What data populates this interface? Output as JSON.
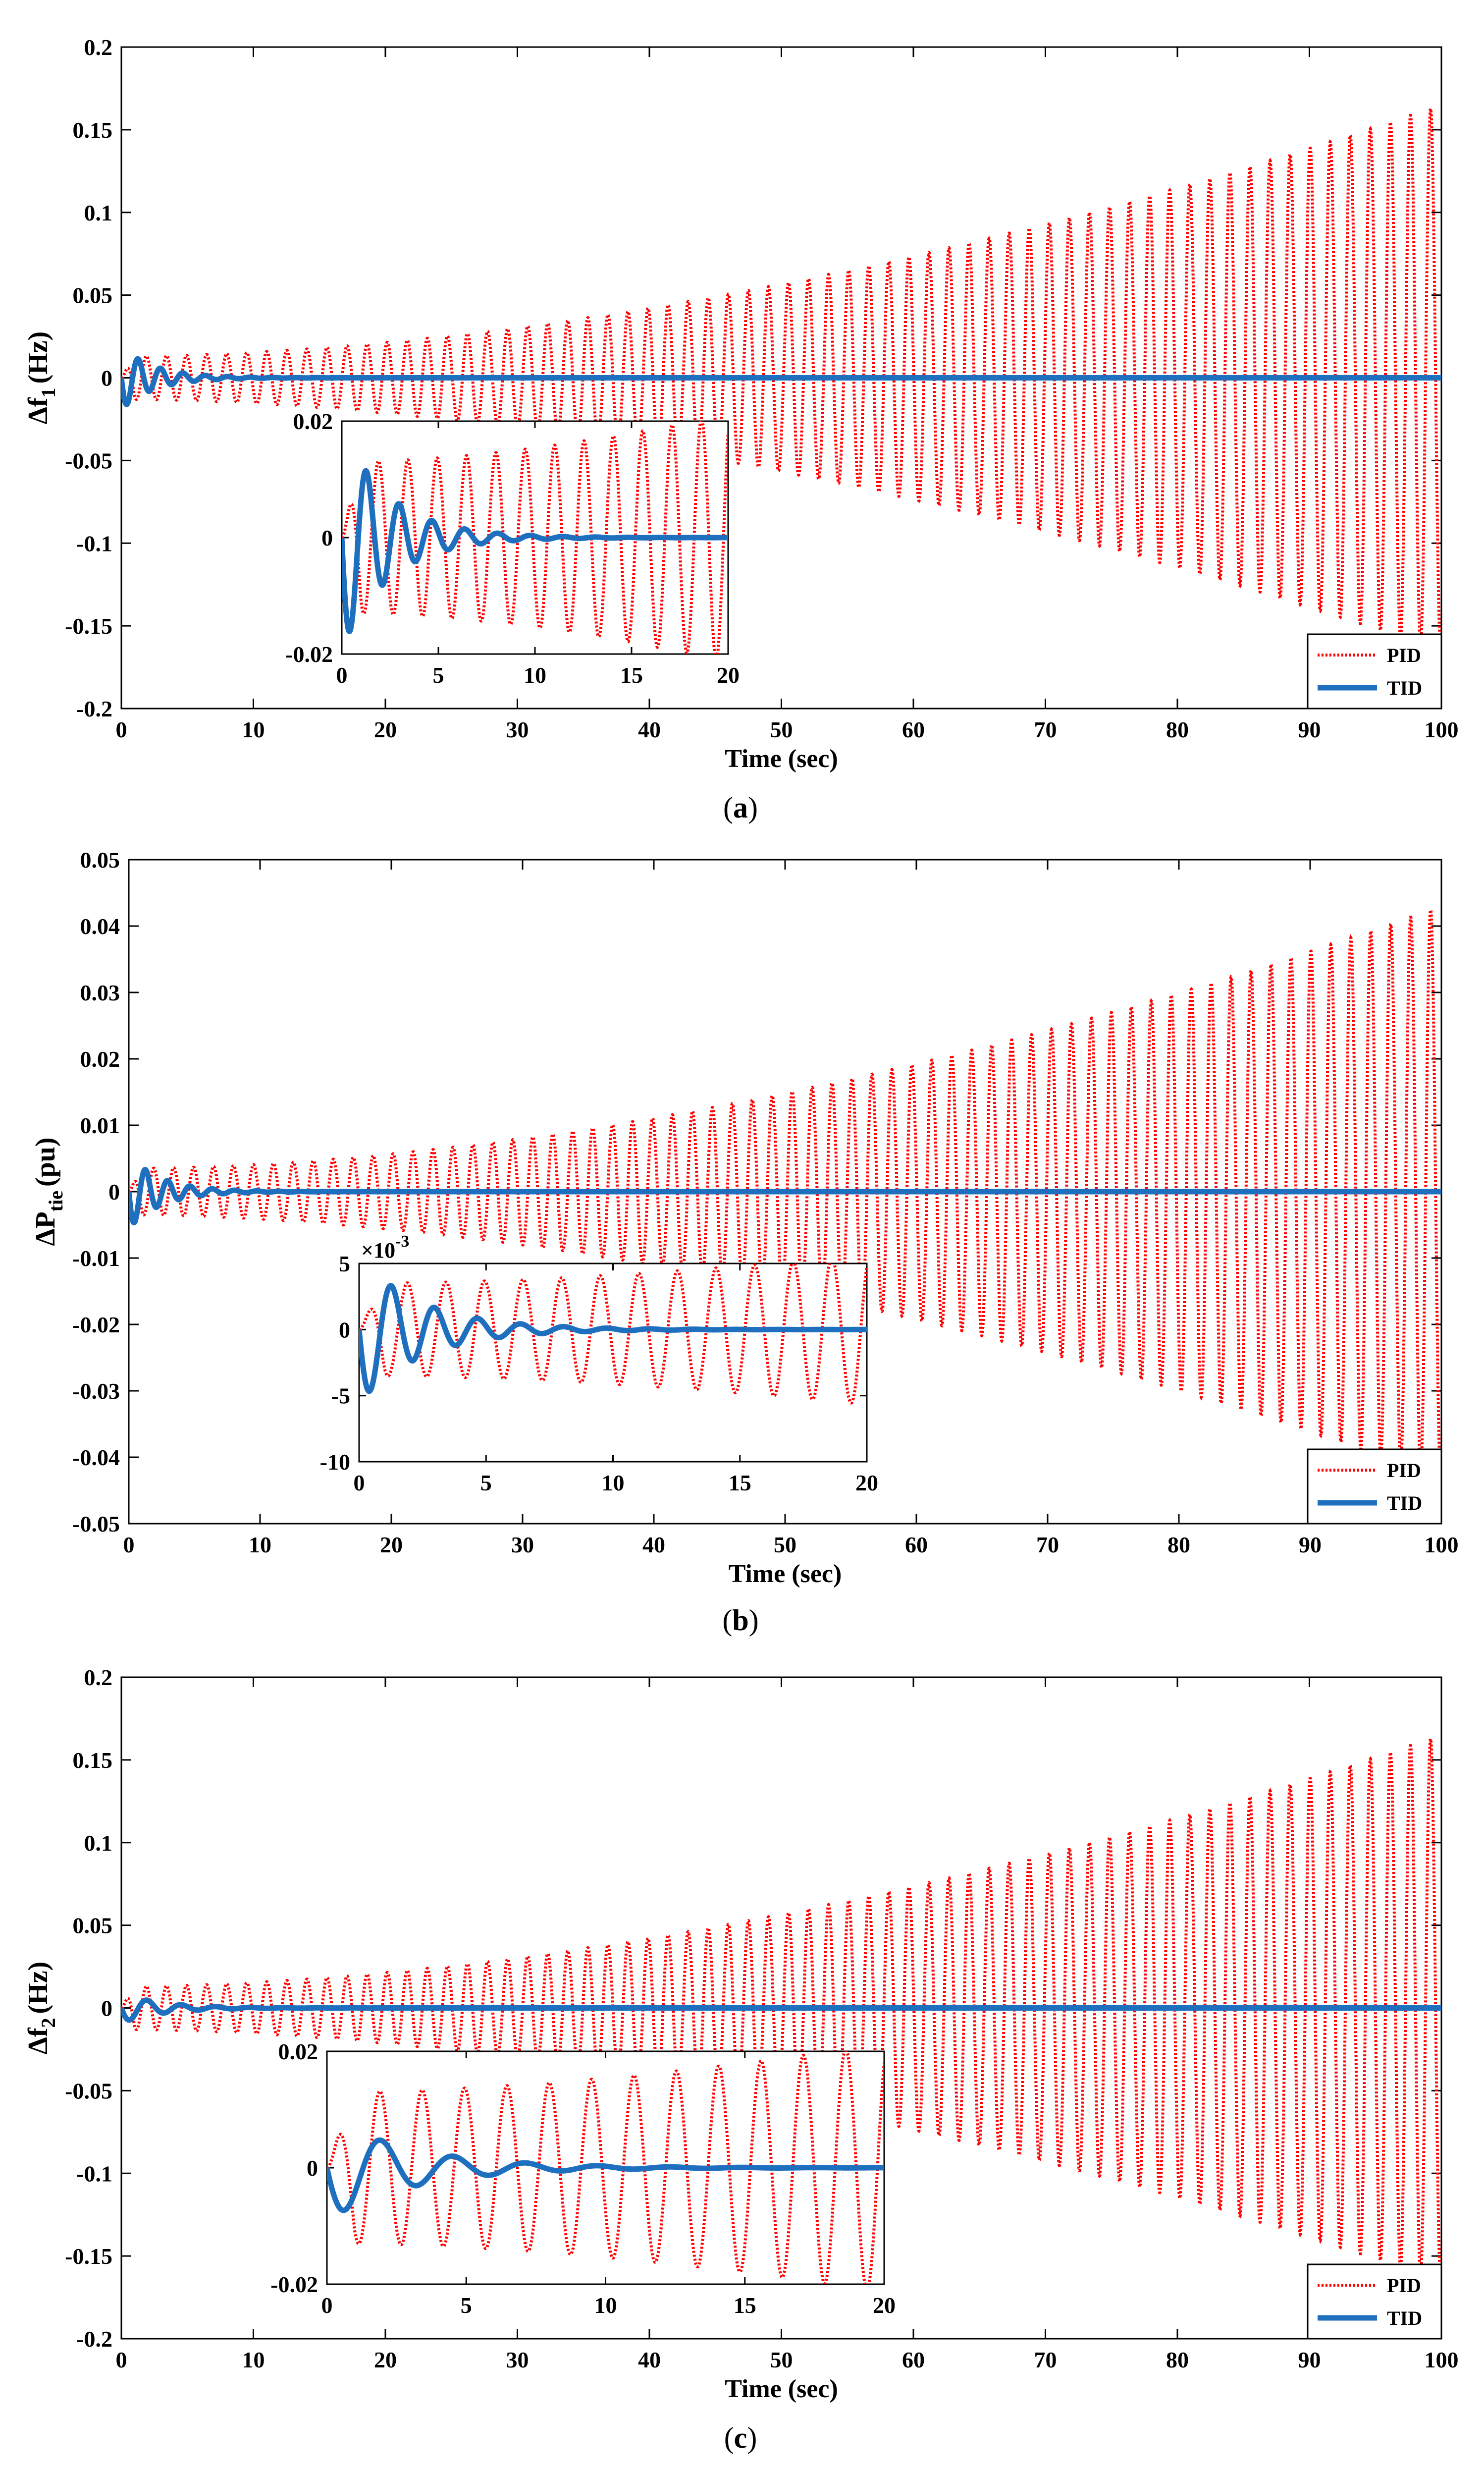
{
  "colors": {
    "pid": "#ff0000",
    "tid": "#1f6fbf",
    "axis": "#000000",
    "background": "#ffffff"
  },
  "chart_data": [
    {
      "type": "line",
      "panel_label": "(a)",
      "panel_letter": "a",
      "xlabel": "Time (sec)",
      "ylabel": {
        "main": "Δf",
        "sub": "1",
        "unit": "(Hz)"
      },
      "xlim": [
        0,
        100
      ],
      "ylim": [
        -0.2,
        0.2
      ],
      "x_ticks": [
        "0",
        "10",
        "20",
        "30",
        "40",
        "50",
        "60",
        "70",
        "80",
        "90",
        "100"
      ],
      "y_ticks": [
        "-0.2",
        "-0.15",
        "-0.1",
        "-0.05",
        "0",
        "0.05",
        "0.1",
        "0.15",
        "0.2"
      ],
      "legend": [
        "PID",
        "TID"
      ],
      "series": [
        {
          "name": "PID",
          "style": "dotted",
          "description": "growing oscillation",
          "amplitude_start": 0.013,
          "amplitude_end": 0.165,
          "period": 1.52
        },
        {
          "name": "TID",
          "style": "solid",
          "description": "damped oscillation settling to 0",
          "amplitude_start": 0.019,
          "period": 1.7,
          "settle_time": 10
        }
      ],
      "inset": {
        "xlim": [
          0,
          20
        ],
        "ylim": [
          -0.02,
          0.02
        ],
        "x_ticks": [
          "0",
          "5",
          "10",
          "15",
          "20"
        ],
        "y_ticks": [
          "-0.02",
          "0",
          "0.02"
        ],
        "exponent_label": ""
      }
    },
    {
      "type": "line",
      "panel_label": "(b)",
      "panel_letter": "b",
      "xlabel": "Time (sec)",
      "ylabel": {
        "main": "ΔP",
        "sub": "tie",
        "unit": "(pu)"
      },
      "xlim": [
        0,
        100
      ],
      "ylim": [
        -0.05,
        0.05
      ],
      "x_ticks": [
        "0",
        "10",
        "20",
        "30",
        "40",
        "50",
        "60",
        "70",
        "80",
        "90",
        "100"
      ],
      "y_ticks": [
        "-0.05",
        "-0.04",
        "-0.03",
        "-0.02",
        "-0.01",
        "0",
        "0.01",
        "0.02",
        "0.03",
        "0.04",
        "0.05"
      ],
      "legend": [
        "PID",
        "TID"
      ],
      "series": [
        {
          "name": "PID",
          "style": "dotted",
          "description": "growing oscillation",
          "amplitude_start": 0.0035,
          "amplitude_end": 0.043,
          "period": 1.52
        },
        {
          "name": "TID",
          "style": "solid",
          "description": "damped oscillation settling to 0",
          "amplitude_start": 0.0055,
          "period": 1.7,
          "settle_time": 10
        }
      ],
      "inset": {
        "xlim": [
          0,
          20
        ],
        "ylim": [
          -10,
          5
        ],
        "x_ticks": [
          "0",
          "5",
          "10",
          "15",
          "20"
        ],
        "y_ticks": [
          "-10",
          "-5",
          "0",
          "5"
        ],
        "exponent_label": "×10",
        "exponent_power": "-3"
      }
    },
    {
      "type": "line",
      "panel_label": "(c)",
      "panel_letter": "c",
      "xlabel": "Time (sec)",
      "ylabel": {
        "main": "Δf",
        "sub": "2",
        "unit": "(Hz)"
      },
      "xlim": [
        0,
        100
      ],
      "ylim": [
        -0.2,
        0.2
      ],
      "x_ticks": [
        "0",
        "10",
        "20",
        "30",
        "40",
        "50",
        "60",
        "70",
        "80",
        "90",
        "100"
      ],
      "y_ticks": [
        "-0.2",
        "-0.15",
        "-0.1",
        "-0.05",
        "0",
        "0.05",
        "0.1",
        "0.15",
        "0.2"
      ],
      "legend": [
        "PID",
        "TID"
      ],
      "series": [
        {
          "name": "PID",
          "style": "dotted",
          "description": "growing oscillation",
          "amplitude_start": 0.013,
          "amplitude_end": 0.165,
          "period": 1.52
        },
        {
          "name": "TID",
          "style": "solid",
          "description": "damped oscillation settling to 0",
          "amplitude_start": 0.009,
          "period": 2.6,
          "settle_time": 12
        }
      ],
      "inset": {
        "xlim": [
          0,
          20
        ],
        "ylim": [
          -0.02,
          0.02
        ],
        "x_ticks": [
          "0",
          "5",
          "10",
          "15",
          "20"
        ],
        "y_ticks": [
          "-0.02",
          "0",
          "0.02"
        ],
        "exponent_label": ""
      }
    }
  ]
}
